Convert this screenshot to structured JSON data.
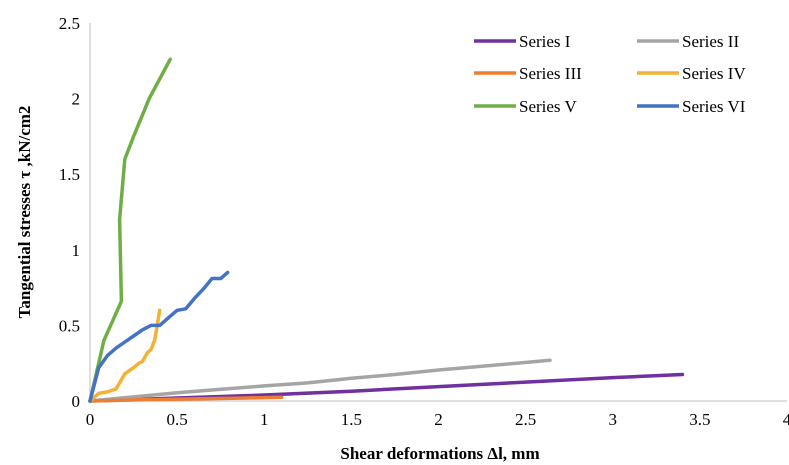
{
  "chart_data": {
    "type": "line",
    "title": "",
    "xlabel": "Shear deformations  Δl, mm",
    "ylabel": "Tangential stresses τ ,kN/cm2",
    "xlim": [
      0,
      4
    ],
    "ylim": [
      0,
      2.5
    ],
    "xticks": [
      "0",
      "0.5",
      "1",
      "1.5",
      "2",
      "2.5",
      "3",
      "3.5",
      "4"
    ],
    "yticks": [
      "0",
      "0.5",
      "1",
      "1.5",
      "2",
      "2.5"
    ],
    "grid": false,
    "legend_position": "top-right",
    "series": [
      {
        "name": "Series I",
        "color": "#7030A0",
        "x": [
          0,
          0.5,
          1.0,
          1.5,
          2.0,
          2.5,
          3.0,
          3.4
        ],
        "y": [
          0,
          0.02,
          0.04,
          0.065,
          0.095,
          0.125,
          0.155,
          0.175
        ]
      },
      {
        "name": "Series II",
        "color": "#A5A5A5",
        "x": [
          0,
          0.5,
          1.0,
          1.25,
          1.5,
          1.75,
          2.0,
          2.3,
          2.64
        ],
        "y": [
          0,
          0.055,
          0.1,
          0.12,
          0.15,
          0.175,
          0.205,
          0.235,
          0.27
        ]
      },
      {
        "name": "Series III",
        "color": "#ED7D31",
        "x": [
          0,
          0.3,
          0.6,
          0.9,
          1.1
        ],
        "y": [
          0,
          0.008,
          0.014,
          0.02,
          0.025
        ]
      },
      {
        "name": "Series IV",
        "color": "#F4B134",
        "x": [
          0,
          0.05,
          0.1,
          0.15,
          0.2,
          0.25,
          0.28,
          0.3,
          0.33,
          0.35,
          0.37,
          0.38,
          0.4
        ],
        "y": [
          0,
          0.05,
          0.06,
          0.08,
          0.18,
          0.22,
          0.25,
          0.26,
          0.32,
          0.34,
          0.4,
          0.46,
          0.6
        ]
      },
      {
        "name": "Series V",
        "color": "#70AD47",
        "x": [
          0,
          0.08,
          0.18,
          0.17,
          0.2,
          0.25,
          0.34,
          0.46
        ],
        "y": [
          0,
          0.4,
          0.66,
          1.2,
          1.6,
          1.75,
          2.0,
          2.26
        ]
      },
      {
        "name": "Series VI",
        "color": "#4472C4",
        "x": [
          0,
          0.05,
          0.1,
          0.15,
          0.2,
          0.25,
          0.3,
          0.35,
          0.4,
          0.45,
          0.5,
          0.55,
          0.6,
          0.65,
          0.7,
          0.75,
          0.79
        ],
        "y": [
          0,
          0.22,
          0.3,
          0.35,
          0.39,
          0.43,
          0.47,
          0.5,
          0.5,
          0.55,
          0.6,
          0.61,
          0.68,
          0.74,
          0.81,
          0.81,
          0.85
        ]
      }
    ]
  }
}
